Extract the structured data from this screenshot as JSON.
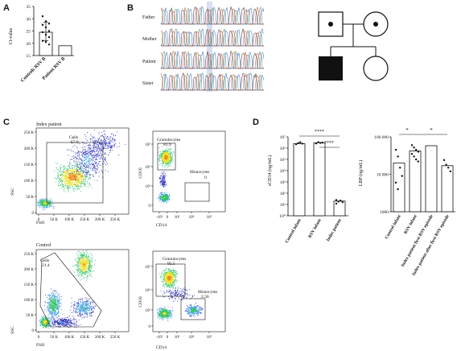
{
  "panels": {
    "A": "A",
    "B": "B",
    "C": "C",
    "D": "D"
  },
  "panel_A": {
    "chart_data": {
      "type": "bar",
      "ylabel": "Ct-value",
      "yticks": [
        "15",
        "20",
        "25",
        "30",
        "35"
      ],
      "ylim": [
        15,
        35
      ],
      "categories": [
        "Controls RSV B",
        "Patient RSV B"
      ],
      "values": [
        24.5,
        19
      ],
      "error_bars": [
        [
          21,
          28.5
        ],
        null
      ],
      "points": [
        31,
        29,
        28,
        27.5,
        26.5,
        25,
        24.5,
        23.5,
        22.5,
        21,
        20.5,
        19.5
      ]
    }
  },
  "panel_B": {
    "rows": [
      "Father",
      "Mother",
      "Patient",
      "Sister"
    ]
  },
  "panel_C": {
    "top_title": "Index patient",
    "bottom_title": "Control",
    "scatter_axes": {
      "y": "SSC",
      "x": "FSH"
    },
    "scatter_yticks": [
      "0",
      "50 K",
      "100 K",
      "150 K",
      "200 K",
      "250 K"
    ],
    "scatter_xticks": [
      "0",
      "50 K",
      "100 K",
      "150 K",
      "200 K",
      "250 K"
    ],
    "cells_gate": {
      "label": "Cells",
      "top_value": "57.9",
      "bottom_value": "21.4"
    },
    "flow_axes": {
      "y": "CD16",
      "x": "CD14"
    },
    "flow_ticks": [
      "0",
      "10³",
      "10⁴",
      "10⁵"
    ],
    "flow_xticks": [
      "-10³",
      "0",
      "10³",
      "10⁴",
      "10⁵"
    ],
    "granulocytes": {
      "label": "Granulocytes",
      "top_value": "81.9",
      "bottom_value": "95.5"
    },
    "monocytes": {
      "label": "Monocytes",
      "top_value": "0",
      "bottom_value": "2.56"
    }
  },
  "panel_D": {
    "left_chart": {
      "chart_data": {
        "type": "bar",
        "ylabel": "sCD14 (ng/mL)",
        "yticks": [
          "10⁰",
          "10¹",
          "10²",
          "10³",
          "10⁴",
          "10⁵",
          "10⁶",
          "10⁷"
        ],
        "ylim": [
          1,
          10000000
        ],
        "categories": [
          "Control infant",
          "RSV infant",
          "Index patient"
        ],
        "values": [
          2500000,
          3000000,
          20
        ],
        "significance": [
          "****",
          "****"
        ]
      }
    },
    "right_chart": {
      "chart_data": {
        "type": "bar",
        "ylabel": "LBP (ng/mL)",
        "yticks": [
          "1000",
          "10 000",
          "100 000"
        ],
        "ylim": [
          1000,
          100000
        ],
        "categories": [
          "Control infant",
          "RSV infant",
          "Index patient first RSV episode",
          "Index patient after first RSV episode"
        ],
        "values": [
          20000,
          42000,
          58000,
          17000
        ],
        "significance": [
          "*",
          "*"
        ]
      }
    }
  }
}
